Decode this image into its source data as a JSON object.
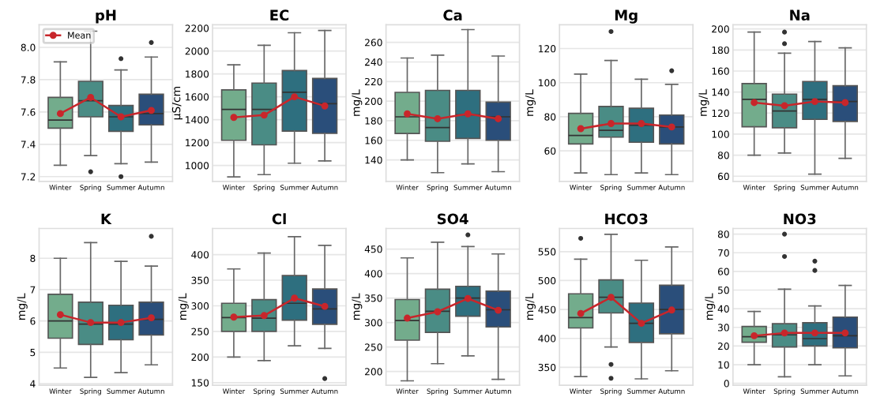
{
  "chart_data": [
    {
      "type": "box",
      "title": "pH",
      "categories": [
        "Winter",
        "Spring",
        "Summer",
        "Autumn"
      ],
      "colors": [
        "#73ac8c",
        "#4a8c85",
        "#2e6f7f",
        "#2a4e7a"
      ],
      "ylim": [
        7.17,
        8.14
      ],
      "yticks": [
        7.2,
        7.4,
        7.6,
        7.8,
        {
          "value": 8,
          "label": "8.0"
        }
      ],
      "grid": "y",
      "legend": "top left",
      "boxes": [
        {
          "low": 7.27,
          "q1": 7.5,
          "median": 7.55,
          "q3": 7.69,
          "high": 7.91
        },
        {
          "low": 7.33,
          "q1": 7.57,
          "median": 7.67,
          "q3": 7.79,
          "high": 8.1,
          "outliers": [
            7.23
          ]
        },
        {
          "low": 7.28,
          "q1": 7.48,
          "median": 7.57,
          "q3": 7.64,
          "high": 7.86,
          "outliers": [
            7.93,
            7.2
          ]
        },
        {
          "low": 7.29,
          "q1": 7.52,
          "median": 7.59,
          "q3": 7.71,
          "high": 7.94,
          "outliers": [
            8.03
          ]
        }
      ],
      "series": [
        {
          "type": "line",
          "name": "Mean",
          "color": "#c8262b",
          "marker": "circle",
          "values": [
            7.59,
            7.69,
            7.57,
            7.61
          ]
        }
      ]
    },
    {
      "type": "box",
      "title": "EC",
      "ylabel": "μS/cm",
      "categories": [
        "Winter",
        "Spring",
        "Summer",
        "Autumn"
      ],
      "colors": [
        "#73ac8c",
        "#4a8c85",
        "#2e6f7f",
        "#2a4e7a"
      ],
      "ylim": [
        860,
        2230
      ],
      "yticks": [
        1000,
        1200,
        1400,
        1600,
        1800,
        2000,
        2200
      ],
      "grid": "y",
      "boxes": [
        {
          "low": 900,
          "q1": 1220,
          "median": 1490,
          "q3": 1660,
          "high": 1880
        },
        {
          "low": 920,
          "q1": 1180,
          "median": 1490,
          "q3": 1720,
          "high": 2050
        },
        {
          "low": 1020,
          "q1": 1300,
          "median": 1640,
          "q3": 1830,
          "high": 2160
        },
        {
          "low": 1040,
          "q1": 1280,
          "median": 1540,
          "q3": 1760,
          "high": 2180
        }
      ],
      "series": [
        {
          "type": "line",
          "color": "#c8262b",
          "marker": "circle",
          "values": [
            1420,
            1440,
            1600,
            1520
          ]
        }
      ]
    },
    {
      "type": "box",
      "title": "Ca",
      "ylabel": "mg/L",
      "categories": [
        "Winter",
        "Spring",
        "Summer",
        "Autumn"
      ],
      "colors": [
        "#73ac8c",
        "#4a8c85",
        "#2e6f7f",
        "#2a4e7a"
      ],
      "ylim": [
        118,
        278
      ],
      "yticks": [
        140,
        160,
        180,
        200,
        220,
        240,
        260
      ],
      "grid": "y",
      "boxes": [
        {
          "low": 140,
          "q1": 167,
          "median": 184,
          "q3": 209,
          "high": 244
        },
        {
          "low": 127,
          "q1": 159,
          "median": 173,
          "q3": 211,
          "high": 247
        },
        {
          "low": 136,
          "q1": 162,
          "median": 186,
          "q3": 211,
          "high": 273
        },
        {
          "low": 128,
          "q1": 160,
          "median": 184,
          "q3": 199,
          "high": 246
        }
      ],
      "series": [
        {
          "type": "line",
          "color": "#c8262b",
          "marker": "circle",
          "values": [
            187,
            182,
            187,
            182
          ]
        }
      ]
    },
    {
      "type": "box",
      "title": "Mg",
      "ylabel": "mg/L",
      "categories": [
        "Winter",
        "Spring",
        "Summer",
        "Autumn"
      ],
      "colors": [
        "#73ac8c",
        "#4a8c85",
        "#2e6f7f",
        "#2a4e7a"
      ],
      "ylim": [
        42,
        134
      ],
      "yticks": [
        60,
        80,
        100,
        120
      ],
      "grid": "y",
      "boxes": [
        {
          "low": 47,
          "q1": 64,
          "median": 69,
          "q3": 82,
          "high": 105
        },
        {
          "low": 46,
          "q1": 68,
          "median": 72,
          "q3": 86,
          "high": 113,
          "outliers": [
            130
          ]
        },
        {
          "low": 47,
          "q1": 65,
          "median": 75,
          "q3": 85,
          "high": 102
        },
        {
          "low": 46,
          "q1": 64,
          "median": 74,
          "q3": 81,
          "high": 99,
          "outliers": [
            107
          ]
        }
      ],
      "series": [
        {
          "type": "line",
          "color": "#c8262b",
          "marker": "circle",
          "values": [
            73,
            76,
            76,
            74
          ]
        }
      ]
    },
    {
      "type": "box",
      "title": "Na",
      "ylabel": "mg/L",
      "categories": [
        "Winter",
        "Spring",
        "Summer",
        "Autumn"
      ],
      "colors": [
        "#73ac8c",
        "#4a8c85",
        "#2e6f7f",
        "#2a4e7a"
      ],
      "ylim": [
        55,
        204
      ],
      "yticks": [
        60,
        80,
        100,
        120,
        140,
        160,
        180,
        200
      ],
      "grid": "y",
      "boxes": [
        {
          "low": 80,
          "q1": 107,
          "median": 133,
          "q3": 148,
          "high": 197
        },
        {
          "low": 82,
          "q1": 106,
          "median": 122,
          "q3": 138,
          "high": 177,
          "outliers": [
            197,
            186
          ]
        },
        {
          "low": 62,
          "q1": 114,
          "median": 133,
          "q3": 150,
          "high": 188
        },
        {
          "low": 77,
          "q1": 112,
          "median": 131,
          "q3": 146,
          "high": 182
        }
      ],
      "series": [
        {
          "type": "line",
          "color": "#c8262b",
          "marker": "circle",
          "values": [
            130,
            127,
            131,
            130
          ]
        }
      ]
    },
    {
      "type": "box",
      "title": "K",
      "ylabel": "mg/L",
      "categories": [
        "Winter",
        "Spring",
        "Summer",
        "Autumn"
      ],
      "colors": [
        "#73ac8c",
        "#4a8c85",
        "#2e6f7f",
        "#2a4e7a"
      ],
      "ylim": [
        3.95,
        8.95
      ],
      "yticks": [
        4,
        5,
        6,
        7,
        8
      ],
      "grid": "y",
      "boxes": [
        {
          "low": 4.5,
          "q1": 5.45,
          "median": 6.0,
          "q3": 6.85,
          "high": 8.0
        },
        {
          "low": 4.2,
          "q1": 5.25,
          "median": 5.9,
          "q3": 6.6,
          "high": 8.5
        },
        {
          "low": 4.35,
          "q1": 5.4,
          "median": 5.9,
          "q3": 6.5,
          "high": 7.9
        },
        {
          "low": 4.6,
          "q1": 5.55,
          "median": 6.05,
          "q3": 6.6,
          "high": 7.75,
          "outliers": [
            8.7
          ]
        }
      ],
      "series": [
        {
          "type": "line",
          "color": "#c8262b",
          "marker": "circle",
          "values": [
            6.2,
            5.95,
            5.95,
            6.1
          ]
        }
      ]
    },
    {
      "type": "box",
      "title": "Cl",
      "ylabel": "mg/L",
      "categories": [
        "Winter",
        "Spring",
        "Summer",
        "Autumn"
      ],
      "colors": [
        "#73ac8c",
        "#4a8c85",
        "#2e6f7f",
        "#2a4e7a"
      ],
      "ylim": [
        145,
        451
      ],
      "yticks": [
        150,
        200,
        250,
        300,
        350,
        400
      ],
      "grid": "y",
      "boxes": [
        {
          "low": 200,
          "q1": 250,
          "median": 277,
          "q3": 305,
          "high": 372
        },
        {
          "low": 193,
          "q1": 250,
          "median": 276,
          "q3": 312,
          "high": 403
        },
        {
          "low": 222,
          "q1": 272,
          "median": 305,
          "q3": 359,
          "high": 435
        },
        {
          "low": 217,
          "q1": 264,
          "median": 294,
          "q3": 333,
          "high": 418,
          "outliers": [
            158
          ]
        }
      ],
      "series": [
        {
          "type": "line",
          "color": "#c8262b",
          "marker": "circle",
          "values": [
            278,
            281,
            315,
            299
          ]
        }
      ]
    },
    {
      "type": "box",
      "title": "SO4",
      "ylabel": "mg/L",
      "categories": [
        "Winter",
        "Spring",
        "Summer",
        "Autumn"
      ],
      "colors": [
        "#73ac8c",
        "#4a8c85",
        "#2e6f7f",
        "#2a4e7a"
      ],
      "ylim": [
        172,
        492
      ],
      "yticks": [
        200,
        250,
        300,
        350,
        400,
        450
      ],
      "grid": "y",
      "boxes": [
        {
          "low": 181,
          "q1": 264,
          "median": 304,
          "q3": 347,
          "high": 432
        },
        {
          "low": 216,
          "q1": 280,
          "median": 323,
          "q3": 368,
          "high": 464
        },
        {
          "low": 232,
          "q1": 313,
          "median": 350,
          "q3": 374,
          "high": 455,
          "outliers": [
            479
          ]
        },
        {
          "low": 184,
          "q1": 291,
          "median": 326,
          "q3": 364,
          "high": 440
        }
      ],
      "series": [
        {
          "type": "line",
          "color": "#c8262b",
          "marker": "circle",
          "values": [
            309,
            322,
            349,
            325
          ]
        }
      ]
    },
    {
      "type": "box",
      "title": "HCO3",
      "ylabel": "mg/L",
      "categories": [
        "Winter",
        "Spring",
        "Summer",
        "Autumn"
      ],
      "colors": [
        "#73ac8c",
        "#4a8c85",
        "#2e6f7f",
        "#2a4e7a"
      ],
      "ylim": [
        319,
        590
      ],
      "yticks": [
        350,
        400,
        450,
        500,
        550
      ],
      "grid": "y",
      "boxes": [
        {
          "low": 334,
          "q1": 418,
          "median": 436,
          "q3": 477,
          "high": 537,
          "outliers": [
            573
          ]
        },
        {
          "low": 385,
          "q1": 444,
          "median": 471,
          "q3": 501,
          "high": 580,
          "outliers": [
            355,
            331
          ]
        },
        {
          "low": 330,
          "q1": 393,
          "median": 426,
          "q3": 461,
          "high": 535
        },
        {
          "low": 344,
          "q1": 408,
          "median": 450,
          "q3": 492,
          "high": 558
        }
      ],
      "series": [
        {
          "type": "line",
          "color": "#c8262b",
          "marker": "circle",
          "values": [
            443,
            471,
            426,
            449
          ]
        }
      ]
    },
    {
      "type": "box",
      "title": "NO3",
      "ylabel": "mg/L",
      "categories": [
        "Winter",
        "Spring",
        "Summer",
        "Autumn"
      ],
      "colors": [
        "#73ac8c",
        "#4a8c85",
        "#2e6f7f",
        "#2a4e7a"
      ],
      "ylim": [
        -1,
        83
      ],
      "yticks": [
        0,
        10,
        20,
        30,
        40,
        50,
        60,
        70,
        80
      ],
      "grid": "y",
      "boxes": [
        {
          "low": 10,
          "q1": 22,
          "median": 25,
          "q3": 30.5,
          "high": 38.5
        },
        {
          "low": 3.5,
          "q1": 19.5,
          "median": 26,
          "q3": 32,
          "high": 50.5,
          "outliers": [
            80,
            68
          ]
        },
        {
          "low": 10,
          "q1": 20,
          "median": 24,
          "q3": 32.5,
          "high": 41.5,
          "outliers": [
            65.5,
            60.5
          ]
        },
        {
          "low": 4,
          "q1": 19,
          "median": 25.5,
          "q3": 35.5,
          "high": 52.5
        }
      ],
      "series": [
        {
          "type": "line",
          "color": "#c8262b",
          "marker": "circle",
          "values": [
            25.5,
            27,
            27,
            27
          ]
        }
      ]
    }
  ]
}
